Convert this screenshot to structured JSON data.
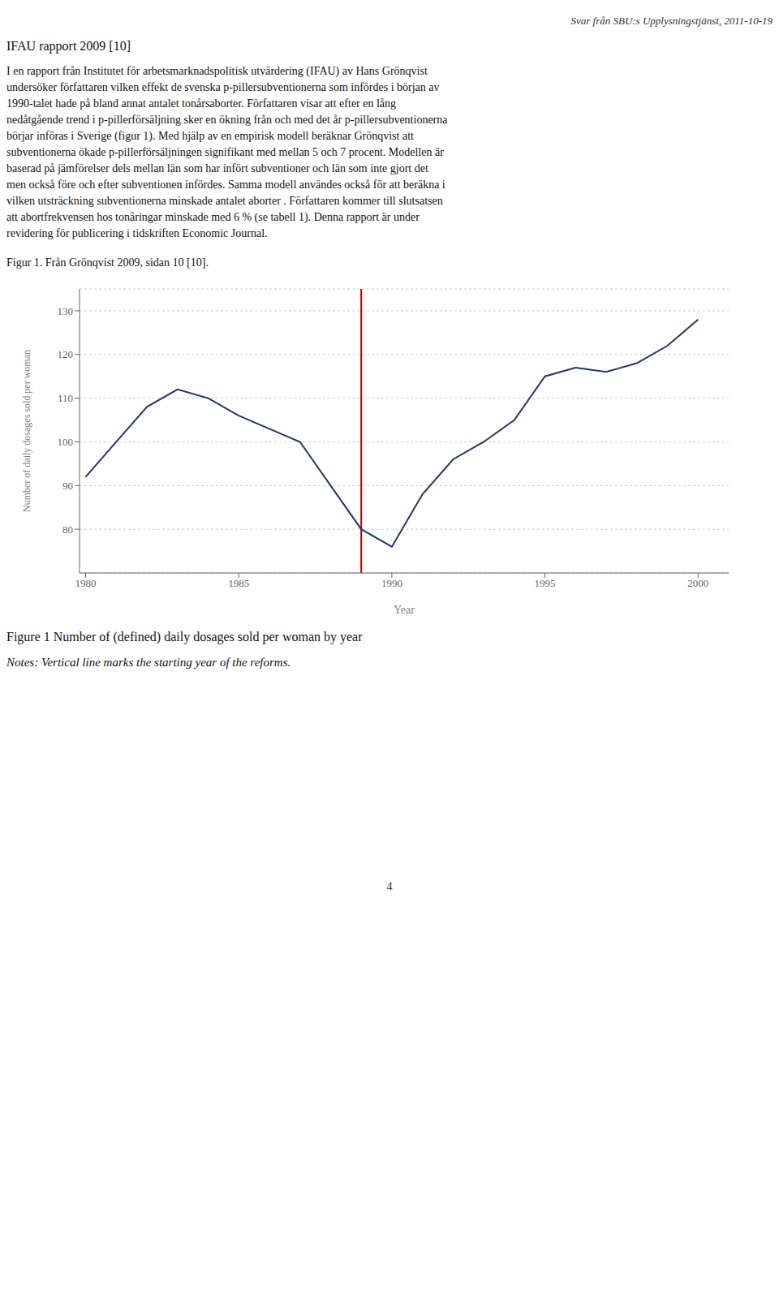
{
  "chart_data": {
    "type": "line",
    "title": "Figure 1 Number of (defined) daily dosages sold per woman by year",
    "x_label": "Year",
    "y_label": "Number of daily dosages sold per woman",
    "x": [
      1980,
      1981,
      1982,
      1983,
      1984,
      1985,
      1986,
      1987,
      1988,
      1989,
      1990,
      1991,
      1992,
      1993,
      1994,
      1995,
      1996,
      1997,
      1998,
      1999,
      2000
    ],
    "values": [
      92,
      100,
      108,
      112,
      110,
      106,
      103,
      100,
      90,
      80,
      76,
      88,
      96,
      100,
      105,
      115,
      117,
      116,
      118,
      122,
      128
    ],
    "color": "#1f3864",
    "xlim": [
      1979.8,
      2001.0
    ],
    "ylim": [
      70,
      135
    ],
    "xticks": [
      1980,
      1985,
      1990,
      1995,
      2000
    ],
    "yticks": [
      80,
      90,
      100,
      110,
      120,
      130
    ],
    "grid": true,
    "vline": {
      "x": 1989,
      "color": "#c00000"
    },
    "annotations": [
      "Svar från SBU:s Upplysningstjänst, 2011-10-19",
      "IFAU rapport 2009 [10]",
      "I en rapport från Institutet för arbetsmarknadspolitisk utvärdering (IFAU) av Hans Grönqvist\nundersöker författaren vilken effekt de svenska p-pillersubventionerna som infördes i början av\n1990-talet hade på bland annat antalet tonårsaborter. Författaren visar att efter en lång\nnedåtgående trend i p-pillerförsäljning sker en ökning från och med det år p-pillersubventionerna\nbörjar införas i Sverige (figur 1). Med hjälp av en empirisk modell beräknar Grönqvist att\nsubventionerna ökade p-pillerförsäljningen signifikant med mellan 5 och 7 procent. Modellen är\nbaserad på jämförelser dels mellan län som har infört subventioner och län som inte gjort det\nmen också före och efter subventionen infördes. Samma modell användes också för att beräkna i\nvilken utsträckning subventionerna minskade antalet aborter . Författaren kommer till slutsatsen\natt abortfrekvensen hos tonåringar minskade med 6 % (se tabell 1). Denna rapport är under\nrevidering för publicering i tidskriften Economic Journal.",
      "Figur 1. Från Grönqvist 2009, sidan 10 [10].",
      "Notes: Vertical line marks the starting year of the reforms.",
      "4"
    ]
  }
}
